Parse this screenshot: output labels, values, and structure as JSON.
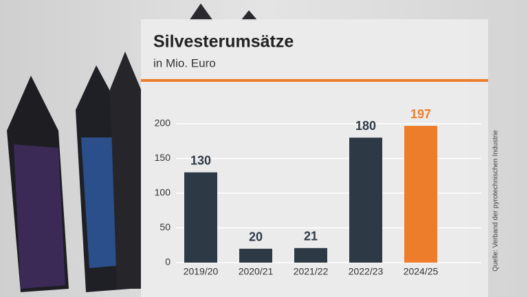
{
  "chart_data": {
    "type": "bar",
    "title": "Silvesterumsätze",
    "subtitle": "in Mio. Euro",
    "categories": [
      "2019/20",
      "2020/21",
      "2021/22",
      "2022/23",
      "2024/25"
    ],
    "values": [
      130,
      20,
      21,
      180,
      197
    ],
    "colors": [
      "#2e3946",
      "#2e3946",
      "#2e3946",
      "#2e3946",
      "#ee7d2b"
    ],
    "ylim": [
      0,
      200
    ],
    "yticks": [
      0,
      50,
      100,
      150,
      200
    ],
    "grid": true,
    "source": "Quelle: Verband der pyrotechnischen Industrie"
  }
}
